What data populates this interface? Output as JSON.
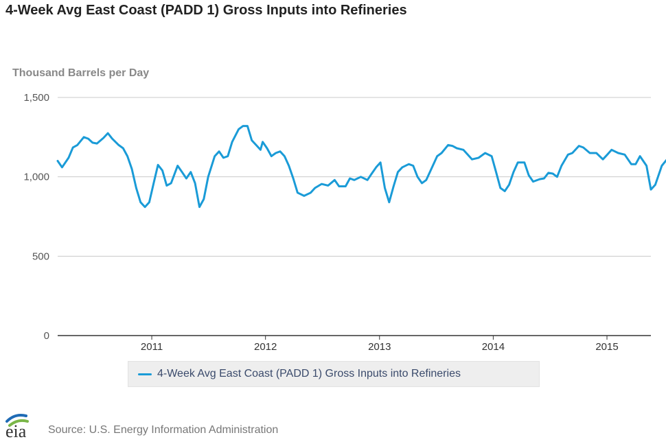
{
  "header": {
    "title": "4-Week Avg East Coast (PADD 1) Gross Inputs into Refineries",
    "units": "Thousand Barrels per Day"
  },
  "footer": {
    "source": "Source: U.S. Energy Information Administration",
    "logo_text": "eia"
  },
  "colors": {
    "series": "#1a9bd7",
    "grid": "#c8c8c8",
    "axis": "#333333",
    "logo_blue": "#1f6bb5",
    "logo_green": "#7ab648"
  },
  "chart_data": {
    "type": "line",
    "title": "4-Week Avg East Coast (PADD 1) Gross Inputs into Refineries",
    "xlabel": "",
    "ylabel": "Thousand Barrels per Day",
    "ylim": [
      0,
      1500
    ],
    "xlim": [
      "2010-03-05",
      "2015-05-22"
    ],
    "yticks": [
      0,
      500,
      1000,
      1500
    ],
    "ytick_labels": [
      "0",
      "500",
      "1,000",
      "1,500"
    ],
    "xticks": [
      "2011-01-01",
      "2012-01-01",
      "2013-01-01",
      "2014-01-01",
      "2015-01-01"
    ],
    "xtick_labels": [
      "2011",
      "2012",
      "2013",
      "2014",
      "2015"
    ],
    "grid": true,
    "legend": "bottom",
    "series": [
      {
        "name": "4-Week Avg East Coast (PADD 1) Gross Inputs into Refineries",
        "points": [
          [
            "2010-03-05",
            1100
          ],
          [
            "2010-03-19",
            1060
          ],
          [
            "2010-04-09",
            1120
          ],
          [
            "2010-04-23",
            1185
          ],
          [
            "2010-05-07",
            1200
          ],
          [
            "2010-05-28",
            1250
          ],
          [
            "2010-06-11",
            1240
          ],
          [
            "2010-06-25",
            1215
          ],
          [
            "2010-07-09",
            1210
          ],
          [
            "2010-07-30",
            1245
          ],
          [
            "2010-08-13",
            1275
          ],
          [
            "2010-08-27",
            1240
          ],
          [
            "2010-09-17",
            1200
          ],
          [
            "2010-10-01",
            1180
          ],
          [
            "2010-10-15",
            1130
          ],
          [
            "2010-10-29",
            1050
          ],
          [
            "2010-11-12",
            930
          ],
          [
            "2010-11-26",
            840
          ],
          [
            "2010-12-10",
            810
          ],
          [
            "2010-12-24",
            840
          ],
          [
            "2011-01-07",
            960
          ],
          [
            "2011-01-21",
            1075
          ],
          [
            "2011-02-04",
            1040
          ],
          [
            "2011-02-18",
            945
          ],
          [
            "2011-03-04",
            960
          ],
          [
            "2011-03-25",
            1070
          ],
          [
            "2011-04-08",
            1030
          ],
          [
            "2011-04-22",
            990
          ],
          [
            "2011-05-06",
            1030
          ],
          [
            "2011-05-20",
            960
          ],
          [
            "2011-06-03",
            810
          ],
          [
            "2011-06-17",
            860
          ],
          [
            "2011-07-01",
            1000
          ],
          [
            "2011-07-22",
            1130
          ],
          [
            "2011-08-05",
            1160
          ],
          [
            "2011-08-19",
            1120
          ],
          [
            "2011-09-02",
            1130
          ],
          [
            "2011-09-16",
            1220
          ],
          [
            "2011-10-07",
            1300
          ],
          [
            "2011-10-21",
            1320
          ],
          [
            "2011-11-04",
            1320
          ],
          [
            "2011-11-18",
            1230
          ],
          [
            "2011-12-02",
            1200
          ],
          [
            "2011-12-16",
            1170
          ],
          [
            "2011-12-23",
            1220
          ],
          [
            "2012-01-06",
            1180
          ],
          [
            "2012-01-20",
            1130
          ],
          [
            "2012-02-03",
            1150
          ],
          [
            "2012-02-17",
            1160
          ],
          [
            "2012-03-02",
            1130
          ],
          [
            "2012-03-16",
            1070
          ],
          [
            "2012-03-30",
            990
          ],
          [
            "2012-04-13",
            900
          ],
          [
            "2012-05-04",
            880
          ],
          [
            "2012-05-25",
            900
          ],
          [
            "2012-06-08",
            930
          ],
          [
            "2012-06-29",
            955
          ],
          [
            "2012-07-20",
            945
          ],
          [
            "2012-08-10",
            980
          ],
          [
            "2012-08-24",
            940
          ],
          [
            "2012-09-14",
            940
          ],
          [
            "2012-09-28",
            990
          ],
          [
            "2012-10-12",
            980
          ],
          [
            "2012-11-02",
            1000
          ],
          [
            "2012-11-23",
            980
          ],
          [
            "2012-12-07",
            1020
          ],
          [
            "2012-12-21",
            1060
          ],
          [
            "2013-01-04",
            1090
          ],
          [
            "2013-01-18",
            930
          ],
          [
            "2013-02-01",
            840
          ],
          [
            "2013-02-15",
            940
          ],
          [
            "2013-03-01",
            1030
          ],
          [
            "2013-03-15",
            1060
          ],
          [
            "2013-04-05",
            1080
          ],
          [
            "2013-04-19",
            1070
          ],
          [
            "2013-05-03",
            1000
          ],
          [
            "2013-05-17",
            960
          ],
          [
            "2013-05-31",
            980
          ],
          [
            "2013-06-14",
            1040
          ],
          [
            "2013-07-05",
            1130
          ],
          [
            "2013-07-19",
            1150
          ],
          [
            "2013-08-09",
            1200
          ],
          [
            "2013-08-23",
            1195
          ],
          [
            "2013-09-06",
            1180
          ],
          [
            "2013-09-27",
            1170
          ],
          [
            "2013-10-11",
            1140
          ],
          [
            "2013-10-25",
            1110
          ],
          [
            "2013-11-15",
            1120
          ],
          [
            "2013-12-06",
            1150
          ],
          [
            "2013-12-27",
            1130
          ],
          [
            "2014-01-10",
            1030
          ],
          [
            "2014-01-24",
            930
          ],
          [
            "2014-02-07",
            910
          ],
          [
            "2014-02-21",
            950
          ],
          [
            "2014-03-07",
            1030
          ],
          [
            "2014-03-21",
            1090
          ],
          [
            "2014-04-11",
            1090
          ],
          [
            "2014-04-25",
            1010
          ],
          [
            "2014-05-09",
            970
          ],
          [
            "2014-05-30",
            985
          ],
          [
            "2014-06-13",
            990
          ],
          [
            "2014-06-27",
            1025
          ],
          [
            "2014-07-11",
            1020
          ],
          [
            "2014-07-25",
            1000
          ],
          [
            "2014-08-08",
            1070
          ],
          [
            "2014-08-29",
            1140
          ],
          [
            "2014-09-12",
            1150
          ],
          [
            "2014-10-03",
            1195
          ],
          [
            "2014-10-17",
            1185
          ],
          [
            "2014-11-07",
            1150
          ],
          [
            "2014-11-28",
            1150
          ],
          [
            "2014-12-19",
            1110
          ],
          [
            "2015-01-02",
            1140
          ],
          [
            "2015-01-16",
            1170
          ],
          [
            "2015-02-06",
            1150
          ],
          [
            "2015-02-27",
            1140
          ],
          [
            "2015-03-20",
            1080
          ],
          [
            "2015-04-03",
            1080
          ],
          [
            "2015-04-17",
            1130
          ],
          [
            "2015-05-08",
            1070
          ],
          [
            "2015-05-22",
            920
          ],
          [
            "2015-06-05",
            950
          ],
          [
            "2015-06-26",
            1070
          ],
          [
            "2015-07-17",
            1120
          ],
          [
            "2015-07-24",
            1160
          ]
        ]
      }
    ]
  }
}
